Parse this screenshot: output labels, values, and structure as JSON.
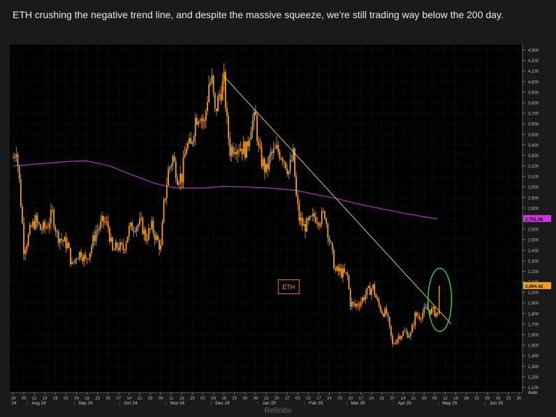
{
  "caption": "ETH crushing the negative trend line, and despite the massive squeeze, we're still trading way below the 200 day.",
  "source": "Refinitiv",
  "colors": {
    "background": "#1a1a1a",
    "plot_bg": "#000000",
    "price": "#f0a020",
    "ma200": "#b030c8",
    "trend": "#e0d040",
    "highlight": "#40c040",
    "grid": "#3a3a3a"
  },
  "chart_data": {
    "type": "line",
    "title": "",
    "ylim": [
      1050,
      4350
    ],
    "y_ticks": [
      1100,
      1200,
      1300,
      1400,
      1500,
      1600,
      1700,
      1800,
      1900,
      2000,
      2100,
      2200,
      2300,
      2400,
      2500,
      2600,
      2700,
      2800,
      2900,
      3000,
      3100,
      3200,
      3300,
      3400,
      3500,
      3600,
      3700,
      3800,
      3900,
      4000,
      4100,
      4200,
      4300
    ],
    "y_tick_labels": [
      "1,100",
      "1,200",
      "1,300",
      "1,400",
      "1,500",
      "1,600",
      "1,700",
      "1,800",
      "1,900",
      "2,000",
      "2,100",
      "2,200",
      "2,300",
      "2,400",
      "2,500",
      "2,600",
      "2,700",
      "2,800",
      "2,900",
      "3,000",
      "3,100",
      "3,200",
      "3,300",
      "3,400",
      "3,500",
      "3,600",
      "3,700",
      "3,800",
      "3,900",
      "4,000",
      "4,100",
      "4,200",
      "4,300"
    ],
    "y_axis_extra_label": "Auto",
    "x_start_date": "2024-07-29",
    "x_end_date": "2025-06-30",
    "week_ticks": [
      "29",
      "05",
      "12",
      "19",
      "26",
      "02",
      "09",
      "16",
      "23",
      "30",
      "07",
      "14",
      "21",
      "28",
      "04",
      "11",
      "18",
      "25",
      "02",
      "09",
      "16",
      "23",
      "30",
      "06",
      "13",
      "20",
      "27",
      "03",
      "10",
      "17",
      "24",
      "03",
      "10",
      "17",
      "24",
      "31",
      "07",
      "14",
      "21",
      "28",
      "05",
      "12",
      "19",
      "26",
      "02",
      "09",
      "16",
      "23",
      "30"
    ],
    "month_labels": [
      {
        "label": "24",
        "date": "2024-07-29"
      },
      {
        "label": "Aug 24",
        "date": "2024-08-15"
      },
      {
        "label": "Sep 24",
        "date": "2024-09-15"
      },
      {
        "label": "Oct 24",
        "date": "2024-10-15"
      },
      {
        "label": "Nov 24",
        "date": "2024-11-15"
      },
      {
        "label": "Dec 24",
        "date": "2024-12-15"
      },
      {
        "label": "Jan 25",
        "date": "2025-01-15"
      },
      {
        "label": "Feb 25",
        "date": "2025-02-15"
      },
      {
        "label": "Mar 25",
        "date": "2025-03-15"
      },
      {
        "label": "Apr 25",
        "date": "2025-04-15"
      },
      {
        "label": "May 25",
        "date": "2025-05-15"
      },
      {
        "label": "Jun 25",
        "date": "2025-06-15"
      }
    ],
    "series": [
      {
        "name": "ETH",
        "style": "candles",
        "points": [
          [
            "2024-07-29",
            3280
          ],
          [
            "2024-07-31",
            3380
          ],
          [
            "2024-08-02",
            3050
          ],
          [
            "2024-08-04",
            2650
          ],
          [
            "2024-08-05",
            2420
          ],
          [
            "2024-08-07",
            2480
          ],
          [
            "2024-08-10",
            2620
          ],
          [
            "2024-08-13",
            2680
          ],
          [
            "2024-08-16",
            2600
          ],
          [
            "2024-08-20",
            2620
          ],
          [
            "2024-08-24",
            2750
          ],
          [
            "2024-08-27",
            2550
          ],
          [
            "2024-08-30",
            2500
          ],
          [
            "2024-09-03",
            2450
          ],
          [
            "2024-09-06",
            2250
          ],
          [
            "2024-09-09",
            2350
          ],
          [
            "2024-09-12",
            2380
          ],
          [
            "2024-09-15",
            2300
          ],
          [
            "2024-09-18",
            2400
          ],
          [
            "2024-09-22",
            2580
          ],
          [
            "2024-09-27",
            2680
          ],
          [
            "2024-09-30",
            2620
          ],
          [
            "2024-10-03",
            2380
          ],
          [
            "2024-10-06",
            2440
          ],
          [
            "2024-10-10",
            2410
          ],
          [
            "2024-10-14",
            2600
          ],
          [
            "2024-10-18",
            2640
          ],
          [
            "2024-10-22",
            2650
          ],
          [
            "2024-10-25",
            2520
          ],
          [
            "2024-10-29",
            2620
          ],
          [
            "2024-11-01",
            2510
          ],
          [
            "2024-11-04",
            2420
          ],
          [
            "2024-11-06",
            2820
          ],
          [
            "2024-11-09",
            3150
          ],
          [
            "2024-11-12",
            3280
          ],
          [
            "2024-11-15",
            3100
          ],
          [
            "2024-11-18",
            3100
          ],
          [
            "2024-11-21",
            3400
          ],
          [
            "2024-11-24",
            3380
          ],
          [
            "2024-11-27",
            3650
          ],
          [
            "2024-11-30",
            3700
          ],
          [
            "2024-12-03",
            3600
          ],
          [
            "2024-12-06",
            3980
          ],
          [
            "2024-12-08",
            4000
          ],
          [
            "2024-12-10",
            3700
          ],
          [
            "2024-12-13",
            3880
          ],
          [
            "2024-12-16",
            4000
          ],
          [
            "2024-12-18",
            3600
          ],
          [
            "2024-12-20",
            3350
          ],
          [
            "2024-12-23",
            3400
          ],
          [
            "2024-12-27",
            3380
          ],
          [
            "2024-12-31",
            3350
          ],
          [
            "2025-01-03",
            3600
          ],
          [
            "2025-01-06",
            3650
          ],
          [
            "2025-01-08",
            3350
          ],
          [
            "2025-01-10",
            3250
          ],
          [
            "2025-01-13",
            3150
          ],
          [
            "2025-01-16",
            3300
          ],
          [
            "2025-01-20",
            3350
          ],
          [
            "2025-01-24",
            3300
          ],
          [
            "2025-01-28",
            3150
          ],
          [
            "2025-01-31",
            3300
          ],
          [
            "2025-02-02",
            2900
          ],
          [
            "2025-02-04",
            2700
          ],
          [
            "2025-02-07",
            2620
          ],
          [
            "2025-02-10",
            2650
          ],
          [
            "2025-02-14",
            2720
          ],
          [
            "2025-02-18",
            2700
          ],
          [
            "2025-02-21",
            2750
          ],
          [
            "2025-02-24",
            2500
          ],
          [
            "2025-02-26",
            2350
          ],
          [
            "2025-02-28",
            2200
          ],
          [
            "2025-03-03",
            2200
          ],
          [
            "2025-03-05",
            2180
          ],
          [
            "2025-03-08",
            2150
          ],
          [
            "2025-03-10",
            1900
          ],
          [
            "2025-03-13",
            1870
          ],
          [
            "2025-03-17",
            1920
          ],
          [
            "2025-03-21",
            2000
          ],
          [
            "2025-03-25",
            2050
          ],
          [
            "2025-03-28",
            1900
          ],
          [
            "2025-03-31",
            1820
          ],
          [
            "2025-04-03",
            1800
          ],
          [
            "2025-04-07",
            1500
          ],
          [
            "2025-04-09",
            1550
          ],
          [
            "2025-04-12",
            1600
          ],
          [
            "2025-04-15",
            1620
          ],
          [
            "2025-04-19",
            1600
          ],
          [
            "2025-04-22",
            1780
          ],
          [
            "2025-04-25",
            1780
          ],
          [
            "2025-04-28",
            1820
          ],
          [
            "2025-05-01",
            1840
          ],
          [
            "2025-05-04",
            1820
          ],
          [
            "2025-05-07",
            1800
          ],
          [
            "2025-05-08",
            2064.42
          ]
        ]
      },
      {
        "name": "200-day MA",
        "style": "line",
        "points": [
          [
            "2024-07-29",
            3200
          ],
          [
            "2024-08-15",
            3220
          ],
          [
            "2024-09-01",
            3240
          ],
          [
            "2024-09-15",
            3250
          ],
          [
            "2024-10-01",
            3200
          ],
          [
            "2024-10-15",
            3120
          ],
          [
            "2024-11-01",
            3030
          ],
          [
            "2024-11-15",
            2990
          ],
          [
            "2024-12-01",
            2990
          ],
          [
            "2024-12-15",
            3005
          ],
          [
            "2025-01-01",
            3000
          ],
          [
            "2025-01-15",
            2990
          ],
          [
            "2025-02-01",
            2970
          ],
          [
            "2025-02-15",
            2930
          ],
          [
            "2025-03-01",
            2890
          ],
          [
            "2025-03-15",
            2840
          ],
          [
            "2025-04-01",
            2790
          ],
          [
            "2025-04-15",
            2750
          ],
          [
            "2025-05-01",
            2710
          ],
          [
            "2025-05-07",
            2701.36
          ]
        ]
      }
    ],
    "trend_line": {
      "from": [
        "2024-12-16",
        4050
      ],
      "to": [
        "2025-05-16",
        1700
      ]
    },
    "highlight_ellipse": {
      "center": [
        "2025-05-07",
        1930
      ],
      "rx_days": 5,
      "ry_value": 300
    },
    "legend_label": "ETH",
    "last_value_label": "2,064.42",
    "last_value": 2064.42,
    "ma_value_label": "2,701.36",
    "ma_value": 2701.36,
    "grid": true
  }
}
